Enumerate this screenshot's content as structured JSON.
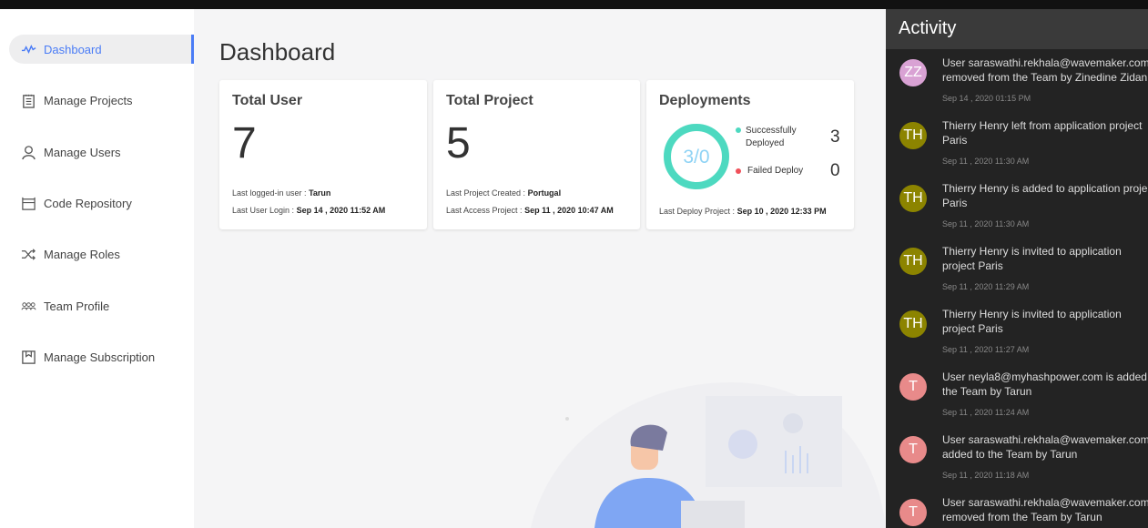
{
  "sidebar": {
    "items": [
      {
        "label": "Dashboard",
        "icon": "activity-icon",
        "active": true
      },
      {
        "label": "Manage Projects",
        "icon": "clipboard-icon"
      },
      {
        "label": "Manage Users",
        "icon": "user-icon"
      },
      {
        "label": "Code Repository",
        "icon": "repository-icon"
      },
      {
        "label": "Manage Roles",
        "icon": "shuffle-icon"
      },
      {
        "label": "Team Profile",
        "icon": "team-icon"
      },
      {
        "label": "Manage Subscription",
        "icon": "bookmark-icon"
      }
    ]
  },
  "main": {
    "title": "Dashboard",
    "total_user": {
      "title": "Total User",
      "value": "7",
      "last_user_label": "Last logged-in user :",
      "last_user": "Tarun",
      "last_login_label": "Last User Login :",
      "last_login": "Sep 14 , 2020 11:52 AM"
    },
    "total_project": {
      "title": "Total Project",
      "value": "5",
      "created_label": "Last Project Created :",
      "created": "Portugal",
      "access_label": "Last Access Project :",
      "access": "Sep 11 , 2020 10:47 AM"
    },
    "deployments": {
      "title": "Deployments",
      "ratio": "3/0",
      "success_label": "Successfully Deployed",
      "success": "3",
      "failed_label": "Failed Deploy",
      "failed": "0",
      "last_label": "Last Deploy Project :",
      "last": "Sep 10 , 2020 12:33 PM",
      "colors": {
        "success": "#4dd9c0",
        "failed": "#f0505a"
      }
    }
  },
  "activity": {
    "title": "Activity",
    "items": [
      {
        "initials": "ZZ",
        "color": "#d9a2d4",
        "lines": [
          "User saraswathi.rekhala@wavemaker.com",
          "removed from the Team by Zinedine Zidan"
        ],
        "time": "Sep 14 , 2020 01:15 PM"
      },
      {
        "initials": "TH",
        "color": "#8c8400",
        "lines": [
          "Thierry Henry left from application project",
          "Paris"
        ],
        "time": "Sep 11 , 2020 11:30 AM"
      },
      {
        "initials": "TH",
        "color": "#8c8400",
        "lines": [
          "Thierry Henry is added to application proje",
          "Paris"
        ],
        "time": "Sep 11 , 2020 11:30 AM"
      },
      {
        "initials": "TH",
        "color": "#8c8400",
        "lines": [
          "Thierry Henry is invited to application",
          "project Paris"
        ],
        "time": "Sep 11 , 2020 11:29 AM"
      },
      {
        "initials": "TH",
        "color": "#8c8400",
        "lines": [
          "Thierry Henry is invited to application",
          "project Paris"
        ],
        "time": "Sep 11 , 2020 11:27 AM"
      },
      {
        "initials": "T",
        "color": "#e88a8a",
        "lines": [
          "User neyla8@myhashpower.com is added",
          "the Team by Tarun"
        ],
        "time": "Sep 11 , 2020 11:24 AM"
      },
      {
        "initials": "T",
        "color": "#e88a8a",
        "lines": [
          "User saraswathi.rekhala@wavemaker.com",
          "added to the Team by Tarun"
        ],
        "time": "Sep 11 , 2020 11:18 AM"
      },
      {
        "initials": "T",
        "color": "#e88a8a",
        "lines": [
          "User saraswathi.rekhala@wavemaker.com",
          "removed from the Team by Tarun"
        ],
        "time": ""
      }
    ]
  }
}
